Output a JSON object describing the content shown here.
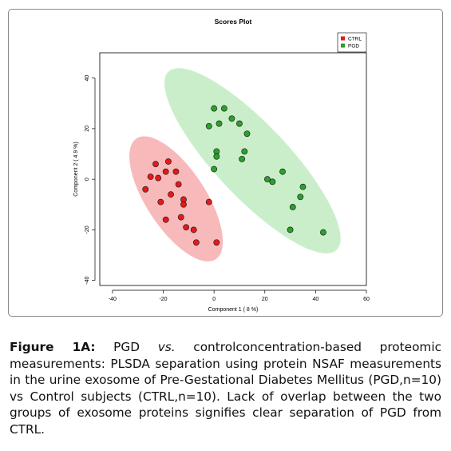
{
  "chart_data": {
    "type": "scatter",
    "title": "Scores Plot",
    "xlabel": "Component 1 ( 8 %)",
    "ylabel": "Component 2 ( 4.9 %)",
    "xlim": [
      -45,
      60
    ],
    "ylim": [
      -42,
      50
    ],
    "x_ticks": [
      -40,
      -20,
      0,
      20,
      40,
      60
    ],
    "y_ticks": [
      -40,
      -20,
      0,
      20,
      40
    ],
    "grid": false,
    "legend_position": "top-right",
    "series": [
      {
        "name": "CTRL",
        "color": "#e31a1c",
        "ellipse_color": "#f08080",
        "x": [
          -23,
          -25,
          -18,
          -22,
          -15,
          -19,
          -14,
          -17,
          -12,
          -21,
          -27,
          -12,
          -19,
          -13,
          -11,
          -8,
          -2,
          -7,
          1
        ],
        "y": [
          6,
          1,
          7,
          0.5,
          3,
          3,
          -2,
          -6,
          -8,
          -9,
          -4,
          -10,
          -16,
          -15,
          -19,
          -20,
          -9,
          -25,
          -25
        ]
      },
      {
        "name": "PGD",
        "color": "#2ca02c",
        "ellipse_color": "#9ee09e",
        "x": [
          0,
          4,
          7,
          2,
          -2,
          10,
          13,
          1,
          1,
          11,
          12,
          0,
          21,
          23,
          27,
          35,
          34,
          31,
          30,
          43
        ],
        "y": [
          28,
          28,
          24,
          22,
          21,
          22,
          18,
          11,
          9,
          8,
          11,
          4,
          0,
          -1,
          3,
          -3,
          -7,
          -11,
          -20,
          -21
        ]
      }
    ]
  },
  "caption": {
    "label": "Figure 1A:",
    "text_1": " PGD ",
    "italic": "vs.",
    "text_2": " controlconcentration-based proteomic measurements: PLSDA separation using protein NSAF measurements in the urine exosome of Pre-Gestational Diabetes Mellitus (PGD,n=10) vs Control subjects (CTRL,n=10). Lack of overlap between the two groups of exosome proteins signifies clear separation of PGD from CTRL."
  }
}
